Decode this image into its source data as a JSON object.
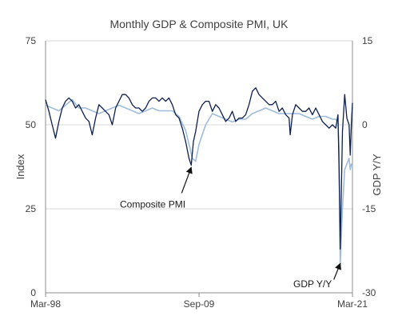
{
  "chart_data": {
    "type": "line",
    "title": "Monthly GDP & Composite PMI, UK",
    "x_ticks": [
      "Mar-98",
      "Sep-09",
      "Mar-21"
    ],
    "x_range": [
      "1998-03",
      "2021-03"
    ],
    "y_left": {
      "label": "Index",
      "ticks": [
        "0",
        "25",
        "50",
        "75"
      ],
      "range": [
        0,
        75
      ]
    },
    "y_right": {
      "label": "GDP Y/Y",
      "ticks": [
        "-30",
        "-15",
        "0",
        "15"
      ],
      "range": [
        -30,
        15
      ]
    },
    "grid": "horizontal",
    "legend": "none",
    "annotations": [
      {
        "text": "Composite PMI",
        "points_to": {
          "date": "2009-02",
          "value": 38
        }
      },
      {
        "text": "GDP Y/Y",
        "points_to": {
          "date": "2020-04",
          "value": -24.5
        }
      }
    ],
    "series": [
      {
        "name": "Composite PMI",
        "axis": "left",
        "color": "#0d1f4f",
        "points": [
          [
            "1998-03",
            57.5
          ],
          [
            "1998-06",
            54
          ],
          [
            "1998-09",
            50
          ],
          [
            "1998-12",
            46
          ],
          [
            "1999-03",
            51
          ],
          [
            "1999-06",
            55
          ],
          [
            "1999-09",
            57
          ],
          [
            "1999-12",
            58
          ],
          [
            "2000-03",
            57
          ],
          [
            "2000-06",
            55
          ],
          [
            "2000-09",
            56
          ],
          [
            "2000-12",
            54
          ],
          [
            "2001-03",
            52
          ],
          [
            "2001-06",
            51
          ],
          [
            "2001-09",
            47
          ],
          [
            "2001-12",
            52
          ],
          [
            "2002-03",
            56
          ],
          [
            "2002-06",
            55
          ],
          [
            "2002-09",
            54
          ],
          [
            "2002-12",
            53
          ],
          [
            "2003-03",
            50
          ],
          [
            "2003-06",
            55
          ],
          [
            "2003-09",
            57
          ],
          [
            "2003-12",
            59
          ],
          [
            "2004-03",
            59
          ],
          [
            "2004-06",
            58
          ],
          [
            "2004-09",
            56
          ],
          [
            "2004-12",
            55
          ],
          [
            "2005-03",
            55
          ],
          [
            "2005-06",
            54
          ],
          [
            "2005-09",
            55
          ],
          [
            "2005-12",
            57
          ],
          [
            "2006-03",
            58
          ],
          [
            "2006-06",
            58
          ],
          [
            "2006-09",
            57
          ],
          [
            "2006-12",
            58
          ],
          [
            "2007-03",
            57
          ],
          [
            "2007-06",
            58
          ],
          [
            "2007-09",
            56
          ],
          [
            "2007-12",
            53
          ],
          [
            "2008-03",
            52
          ],
          [
            "2008-06",
            49
          ],
          [
            "2008-09",
            45
          ],
          [
            "2008-12",
            40
          ],
          [
            "2009-02",
            38
          ],
          [
            "2009-04",
            45
          ],
          [
            "2009-06",
            48
          ],
          [
            "2009-09",
            54
          ],
          [
            "2009-12",
            56
          ],
          [
            "2010-03",
            57
          ],
          [
            "2010-06",
            57
          ],
          [
            "2010-09",
            54
          ],
          [
            "2010-12",
            56
          ],
          [
            "2011-03",
            55
          ],
          [
            "2011-06",
            53
          ],
          [
            "2011-09",
            51
          ],
          [
            "2011-12",
            52
          ],
          [
            "2012-03",
            54
          ],
          [
            "2012-06",
            51
          ],
          [
            "2012-09",
            52
          ],
          [
            "2012-12",
            52
          ],
          [
            "2013-03",
            53
          ],
          [
            "2013-06",
            56
          ],
          [
            "2013-09",
            60
          ],
          [
            "2013-12",
            61
          ],
          [
            "2014-03",
            59
          ],
          [
            "2014-06",
            58
          ],
          [
            "2014-09",
            57
          ],
          [
            "2014-12",
            56
          ],
          [
            "2015-03",
            56
          ],
          [
            "2015-06",
            57
          ],
          [
            "2015-09",
            54
          ],
          [
            "2015-12",
            55
          ],
          [
            "2016-03",
            53
          ],
          [
            "2016-06",
            52
          ],
          [
            "2016-07",
            47
          ],
          [
            "2016-09",
            53
          ],
          [
            "2016-12",
            56
          ],
          [
            "2017-03",
            55
          ],
          [
            "2017-06",
            54
          ],
          [
            "2017-09",
            54
          ],
          [
            "2017-12",
            55
          ],
          [
            "2018-03",
            53
          ],
          [
            "2018-06",
            55
          ],
          [
            "2018-09",
            53
          ],
          [
            "2018-12",
            51
          ],
          [
            "2019-03",
            50
          ],
          [
            "2019-06",
            49
          ],
          [
            "2019-09",
            50
          ],
          [
            "2019-12",
            49
          ],
          [
            "2020-02",
            53
          ],
          [
            "2020-03",
            36
          ],
          [
            "2020-04",
            13
          ],
          [
            "2020-05",
            30
          ],
          [
            "2020-06",
            48
          ],
          [
            "2020-08",
            59
          ],
          [
            "2020-10",
            52
          ],
          [
            "2020-12",
            50
          ],
          [
            "2021-01",
            41
          ],
          [
            "2021-02",
            50
          ],
          [
            "2021-03",
            56.5
          ]
        ]
      },
      {
        "name": "GDP Y/Y",
        "axis": "right",
        "color": "#9fbcd9",
        "points": [
          [
            "1998-03",
            3.5
          ],
          [
            "1998-09",
            3
          ],
          [
            "1999-03",
            2.5
          ],
          [
            "1999-09",
            3.5
          ],
          [
            "2000-03",
            4.5
          ],
          [
            "2000-09",
            3
          ],
          [
            "2001-03",
            3
          ],
          [
            "2001-09",
            2.5
          ],
          [
            "2002-03",
            2
          ],
          [
            "2002-09",
            2.5
          ],
          [
            "2003-03",
            3
          ],
          [
            "2003-09",
            3.5
          ],
          [
            "2004-03",
            3
          ],
          [
            "2004-09",
            2.5
          ],
          [
            "2005-03",
            2
          ],
          [
            "2005-09",
            2.5
          ],
          [
            "2006-03",
            3
          ],
          [
            "2006-09",
            2.5
          ],
          [
            "2007-03",
            2.5
          ],
          [
            "2007-09",
            2.5
          ],
          [
            "2008-03",
            1.5
          ],
          [
            "2008-09",
            -1
          ],
          [
            "2009-03",
            -6
          ],
          [
            "2009-06",
            -6.5
          ],
          [
            "2009-09",
            -3.5
          ],
          [
            "2010-03",
            0
          ],
          [
            "2010-09",
            2
          ],
          [
            "2011-03",
            1.5
          ],
          [
            "2011-09",
            1
          ],
          [
            "2012-03",
            0.5
          ],
          [
            "2012-09",
            1
          ],
          [
            "2013-03",
            1
          ],
          [
            "2013-09",
            2
          ],
          [
            "2014-03",
            2.5
          ],
          [
            "2014-09",
            3
          ],
          [
            "2015-03",
            2.5
          ],
          [
            "2015-09",
            2
          ],
          [
            "2016-03",
            2
          ],
          [
            "2016-09",
            2
          ],
          [
            "2017-03",
            2
          ],
          [
            "2017-09",
            1.5
          ],
          [
            "2018-03",
            1
          ],
          [
            "2018-09",
            1.5
          ],
          [
            "2019-03",
            1.5
          ],
          [
            "2019-09",
            1
          ],
          [
            "2019-12",
            1
          ],
          [
            "2020-02",
            0.5
          ],
          [
            "2020-03",
            -5
          ],
          [
            "2020-04",
            -25
          ],
          [
            "2020-05",
            -20
          ],
          [
            "2020-06",
            -15
          ],
          [
            "2020-08",
            -8
          ],
          [
            "2020-10",
            -7
          ],
          [
            "2020-12",
            -6
          ],
          [
            "2021-01",
            -8
          ],
          [
            "2021-02",
            -7
          ],
          [
            "2021-03",
            -7.5
          ]
        ]
      }
    ]
  }
}
